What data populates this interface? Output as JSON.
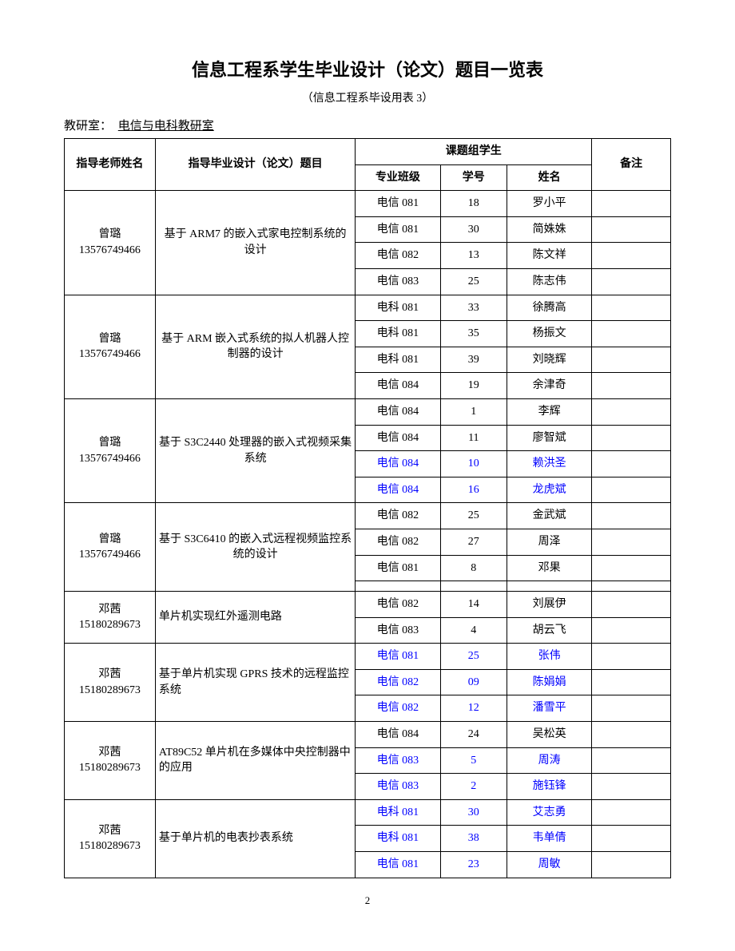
{
  "page": {
    "title": "信息工程系学生毕业设计（论文）题目一览表",
    "subtitle": "（信息工程系毕设用表 3）",
    "deptLabel": "教研室：",
    "deptName": "电信与电科教研室",
    "pageNumber": "2"
  },
  "headers": {
    "advisor": "指导老师姓名",
    "topic": "指导毕业设计（论文）题目",
    "studentGroup": "课题组学生",
    "class": "专业班级",
    "studentId": "学号",
    "studentName": "姓名",
    "note": "备注"
  },
  "colors": {
    "highlight": "#0000ff",
    "text": "#000000",
    "background": "#ffffff",
    "border": "#000000"
  },
  "groups": [
    {
      "advisor": "曾璐\n13576749466",
      "topic": "基于 ARM7 的嵌入式家电控制系统的设计",
      "students": [
        {
          "class": "电信 081",
          "sid": "18",
          "name": "罗小平",
          "colored": false
        },
        {
          "class": "电信 081",
          "sid": "30",
          "name": "简姝姝",
          "colored": false
        },
        {
          "class": "电信 082",
          "sid": "13",
          "name": "陈文祥",
          "colored": false
        },
        {
          "class": "电信 083",
          "sid": "25",
          "name": "陈志伟",
          "colored": false
        }
      ]
    },
    {
      "advisor": "曾璐\n13576749466",
      "topic": "基于 ARM 嵌入式系统的拟人机器人控制器的设计",
      "students": [
        {
          "class": "电科 081",
          "sid": "33",
          "name": "徐腾高",
          "colored": false
        },
        {
          "class": "电科 081",
          "sid": "35",
          "name": "杨振文",
          "colored": false
        },
        {
          "class": "电科 081",
          "sid": "39",
          "name": "刘晓辉",
          "colored": false
        },
        {
          "class": "电信 084",
          "sid": "19",
          "name": "余津奇",
          "colored": false
        }
      ]
    },
    {
      "advisor": "曾璐\n13576749466",
      "topic": "基于 S3C2440 处理器的嵌入式视频采集系统",
      "students": [
        {
          "class": "电信 084",
          "sid": "1",
          "name": "李辉",
          "colored": false
        },
        {
          "class": "电信 084",
          "sid": "11",
          "name": "廖智斌",
          "colored": false
        },
        {
          "class": "电信 084",
          "sid": "10",
          "name": "赖洪圣",
          "colored": true
        },
        {
          "class": "电信 084",
          "sid": "16",
          "name": "龙虎斌",
          "colored": true
        }
      ]
    },
    {
      "advisor": "曾璐\n13576749466",
      "topic": "基于 S3C6410 的嵌入式远程视频监控系统的设计",
      "students": [
        {
          "class": "电信 082",
          "sid": "25",
          "name": "金武斌",
          "colored": false
        },
        {
          "class": "电信 082",
          "sid": "27",
          "name": "周泽",
          "colored": false
        },
        {
          "class": "电信 081",
          "sid": "8",
          "name": "邓果",
          "colored": false
        },
        {
          "class": "",
          "sid": "",
          "name": "",
          "colored": false
        }
      ]
    },
    {
      "advisor": "邓茜\n15180289673",
      "topic": "单片机实现红外遥测电路",
      "topicAlign": "left",
      "students": [
        {
          "class": "电信 082",
          "sid": "14",
          "name": "刘展伊",
          "colored": false
        },
        {
          "class": "电信 083",
          "sid": "4",
          "name": "胡云飞",
          "colored": false
        }
      ]
    },
    {
      "advisor": "邓茜\n15180289673",
      "topic": "基于单片机实现 GPRS 技术的远程监控系统",
      "topicAlign": "left",
      "students": [
        {
          "class": "电信 081",
          "sid": "25",
          "name": "张伟",
          "colored": true
        },
        {
          "class": "电信 082",
          "sid": "09",
          "name": "陈娟娟",
          "colored": true
        },
        {
          "class": "电信 082",
          "sid": "12",
          "name": "潘雪平",
          "colored": true
        }
      ]
    },
    {
      "advisor": "邓茜\n15180289673",
      "topic": "AT89C52 单片机在多媒体中央控制器中的应用",
      "topicAlign": "left",
      "students": [
        {
          "class": "电信 084",
          "sid": "24",
          "name": "吴松英",
          "colored": false
        },
        {
          "class": "电信 083",
          "sid": "5",
          "name": "周涛",
          "colored": true
        },
        {
          "class": "电信 083",
          "sid": "2",
          "name": "施钰锋",
          "colored": true
        }
      ]
    },
    {
      "advisor": "邓茜\n15180289673",
      "topic": "基于单片机的电表抄表系统",
      "topicAlign": "left",
      "students": [
        {
          "class": "电科 081",
          "sid": "30",
          "name": "艾志勇",
          "colored": true
        },
        {
          "class": "电科 081",
          "sid": "38",
          "name": "韦单倩",
          "colored": true
        },
        {
          "class": "电信 081",
          "sid": "23",
          "name": "周敏",
          "colored": true
        }
      ]
    }
  ]
}
